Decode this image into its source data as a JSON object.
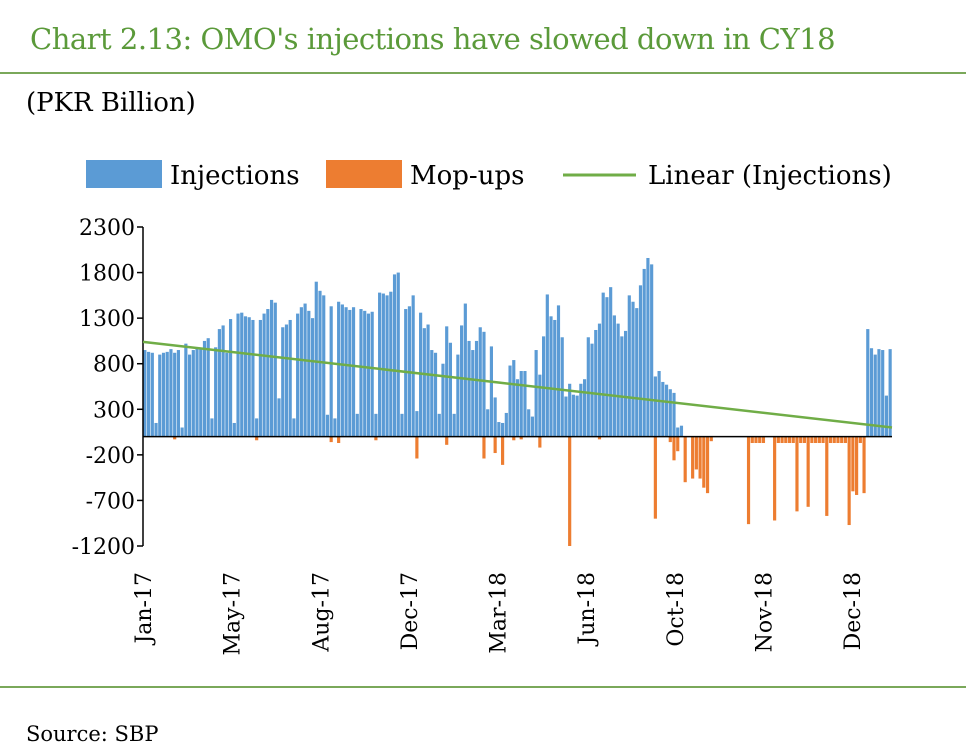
{
  "title": "Chart 2.13: OMO's injections have slowed down in CY18",
  "unit_label": "(PKR Billion)",
  "source": "Source: SBP",
  "colors": {
    "injections": "#5b9bd5",
    "mopups": "#ed7d31",
    "trend": "#70ad47",
    "accent": "#5b9a3a"
  },
  "chart_data": {
    "type": "bar",
    "title": "Chart 2.13: OMO's injections have slowed down in CY18",
    "xlabel": "",
    "ylabel": "(PKR Billion)",
    "ylim": [
      -1200,
      2300
    ],
    "yticks": [
      2300,
      1800,
      1300,
      800,
      300,
      -200,
      -700,
      -1200
    ],
    "xtick_labels": [
      "Jan-17",
      "May-17",
      "Aug-17",
      "Dec-17",
      "Mar-18",
      "Jun-18",
      "Oct-18",
      "Nov-18",
      "Dec-18"
    ],
    "grid": false,
    "legend_position": "top",
    "series": [
      {
        "name": "Injections",
        "values": [
          950,
          930,
          920,
          150,
          900,
          920,
          930,
          960,
          920,
          950,
          100,
          1020,
          900,
          950,
          980,
          960,
          1050,
          1080,
          200,
          980,
          1180,
          1220,
          920,
          1290,
          150,
          1350,
          1360,
          1320,
          1310,
          1280,
          200,
          1280,
          1350,
          1400,
          1500,
          1470,
          420,
          1200,
          1230,
          1280,
          200,
          1350,
          1420,
          1460,
          1380,
          1300,
          1700,
          1600,
          1550,
          240,
          1430,
          200,
          1480,
          1450,
          1420,
          1390,
          1420,
          250,
          1400,
          1380,
          1350,
          1370,
          250,
          1580,
          1570,
          1550,
          1590,
          1780,
          1800,
          250,
          1400,
          1430,
          1550,
          280,
          1360,
          1190,
          1230,
          950,
          920,
          250,
          800,
          1210,
          1030,
          250,
          900,
          1220,
          1460,
          1050,
          950,
          1050,
          1200,
          1150,
          300,
          990,
          430,
          160,
          150,
          260,
          780,
          840,
          630,
          720,
          720,
          300,
          220,
          950,
          680,
          1100,
          1560,
          1320,
          1280,
          1440,
          1090,
          440,
          580,
          460,
          450,
          580,
          630,
          1090,
          1020,
          1170,
          1240,
          1580,
          1530,
          1640,
          1330,
          1240,
          1100,
          1160,
          1550,
          1480,
          1410,
          1660,
          1840,
          1960,
          1890,
          660,
          720,
          600,
          570,
          520,
          480,
          100,
          120,
          0,
          0,
          0,
          0,
          0,
          0,
          0,
          0,
          0,
          0,
          0,
          0,
          0,
          0,
          0,
          0,
          0,
          0,
          0,
          0,
          0,
          0,
          0,
          0,
          0,
          0,
          0,
          0,
          0,
          0,
          0,
          0,
          0,
          0,
          0,
          0,
          0,
          0,
          0,
          0,
          0,
          0,
          0,
          0,
          0,
          0,
          0,
          0,
          0,
          1180,
          970,
          900,
          960,
          950,
          450,
          960
        ]
      },
      {
        "name": "Mop-ups",
        "values": [
          0,
          0,
          0,
          0,
          0,
          0,
          0,
          0,
          -30,
          0,
          0,
          0,
          0,
          0,
          0,
          0,
          0,
          0,
          0,
          0,
          0,
          0,
          0,
          0,
          0,
          0,
          0,
          0,
          0,
          0,
          -40,
          0,
          0,
          0,
          0,
          0,
          0,
          0,
          0,
          0,
          0,
          0,
          0,
          0,
          0,
          0,
          0,
          0,
          0,
          0,
          -60,
          0,
          -70,
          0,
          0,
          0,
          0,
          0,
          0,
          0,
          0,
          0,
          -40,
          0,
          0,
          0,
          0,
          0,
          0,
          0,
          0,
          0,
          0,
          -240,
          0,
          0,
          0,
          0,
          0,
          0,
          0,
          -90,
          0,
          0,
          0,
          0,
          0,
          0,
          0,
          0,
          0,
          -240,
          0,
          0,
          -180,
          0,
          -310,
          0,
          0,
          -40,
          0,
          -30,
          0,
          0,
          0,
          0,
          -120,
          0,
          0,
          0,
          0,
          0,
          0,
          0,
          -1200,
          0,
          0,
          0,
          0,
          0,
          0,
          0,
          -30,
          0,
          0,
          0,
          0,
          0,
          0,
          0,
          0,
          0,
          0,
          0,
          0,
          0,
          0,
          -900,
          0,
          0,
          0,
          -60,
          -260,
          -160,
          0,
          -500,
          0,
          -460,
          -360,
          -460,
          -560,
          -620,
          -50,
          0,
          0,
          0,
          0,
          0,
          0,
          0,
          0,
          0,
          -960,
          -70,
          -70,
          -70,
          -70,
          0,
          0,
          -920,
          -70,
          -70,
          -70,
          -70,
          -70,
          -820,
          -70,
          -70,
          -770,
          -70,
          -70,
          -70,
          -70,
          -870,
          -70,
          -70,
          -70,
          -70,
          -70,
          -970,
          -600,
          -640,
          -70,
          -620,
          0,
          0,
          0,
          0,
          0,
          0,
          0
        ]
      },
      {
        "name": "Linear (Injections)",
        "type": "line",
        "x": [
          0,
          1
        ],
        "values": [
          1040,
          100
        ]
      }
    ]
  }
}
